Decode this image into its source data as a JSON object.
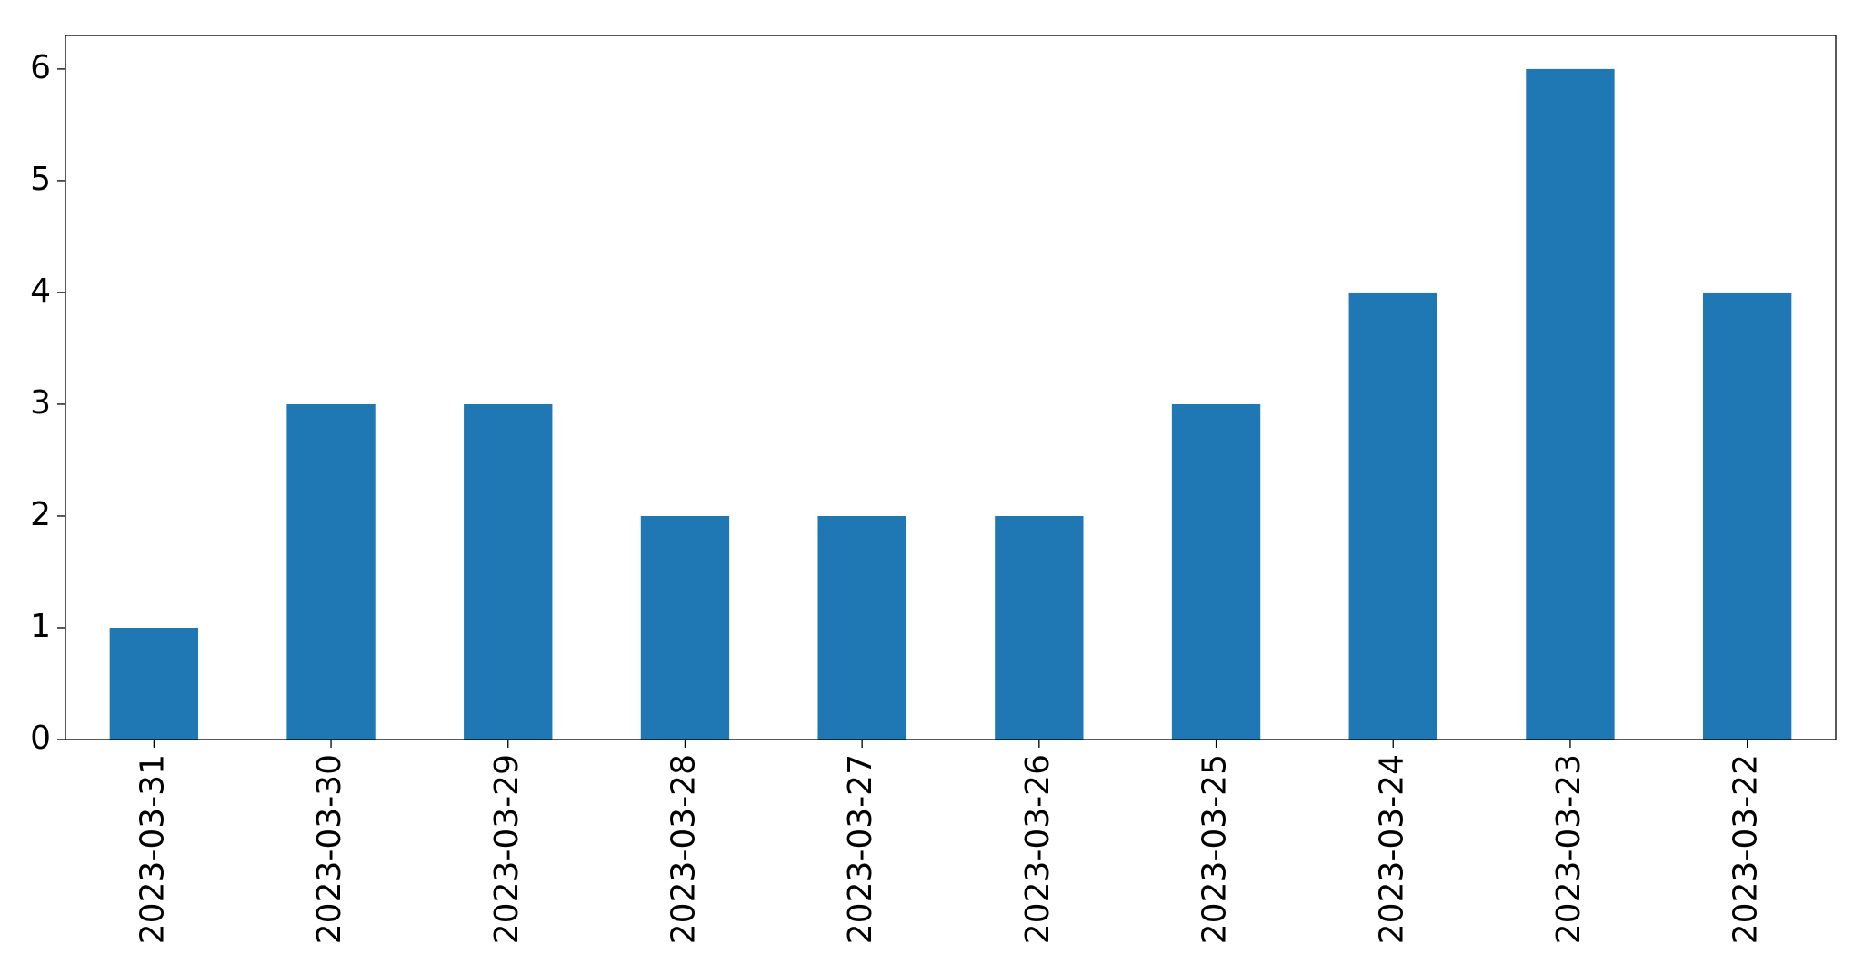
{
  "chart_data": {
    "type": "bar",
    "categories": [
      "2023-03-31",
      "2023-03-30",
      "2023-03-29",
      "2023-03-28",
      "2023-03-27",
      "2023-03-26",
      "2023-03-25",
      "2023-03-24",
      "2023-03-23",
      "2023-03-22"
    ],
    "values": [
      1,
      3,
      3,
      2,
      2,
      2,
      3,
      4,
      6,
      4
    ],
    "color": "#1f77b4",
    "ylim": [
      0,
      6.3
    ],
    "yticks": [
      0,
      1,
      2,
      3,
      4,
      5,
      6
    ],
    "grid": false
  }
}
